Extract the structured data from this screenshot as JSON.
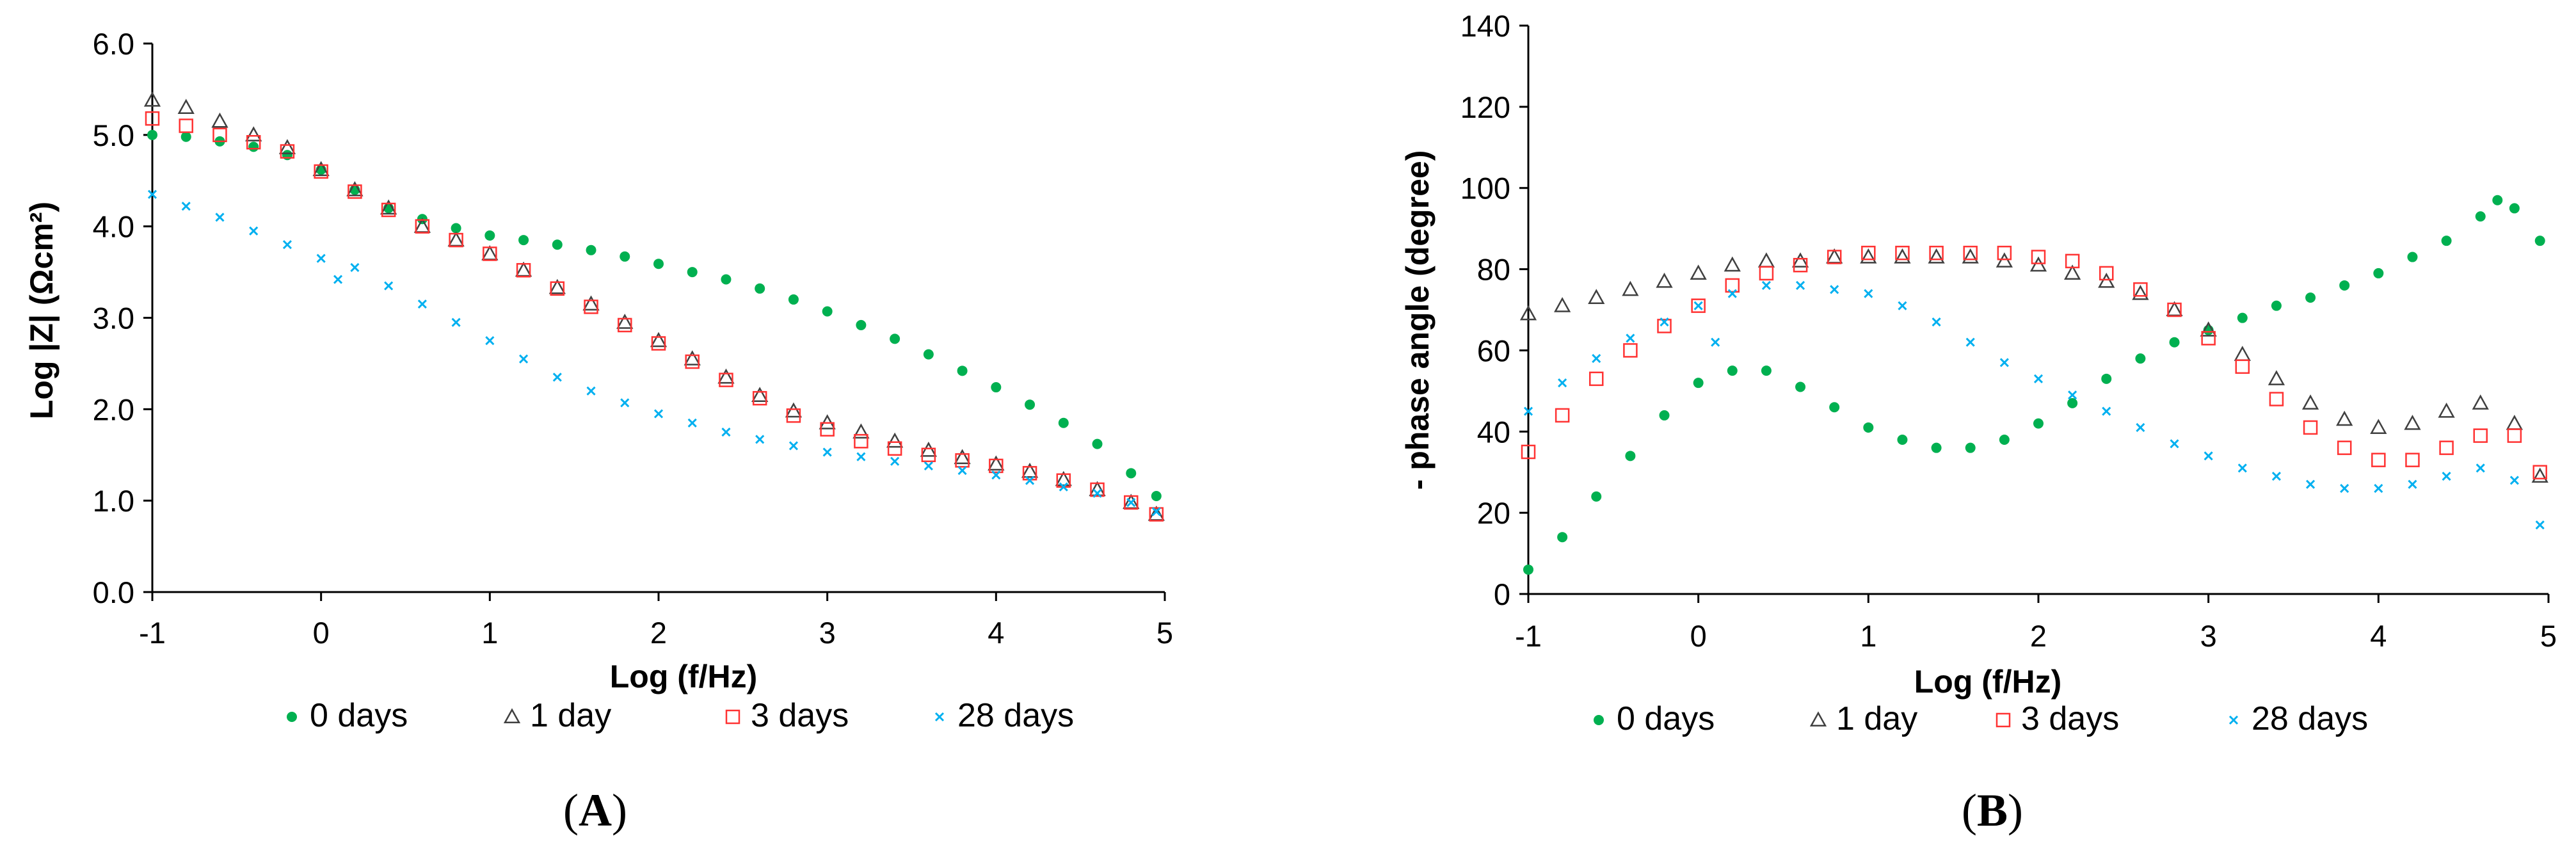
{
  "figure": {
    "panels": [
      {
        "label_open": "(",
        "label": "A",
        "label_close": ")"
      },
      {
        "label_open": "(",
        "label": "B",
        "label_close": ")"
      }
    ]
  },
  "chart_data": [
    {
      "type": "scatter",
      "panel": "A",
      "title": "",
      "xlabel": "Log (f/Hz)",
      "ylabel": "Log |Z| (Ωcm²)",
      "xlim": [
        -1,
        5
      ],
      "ylim": [
        0,
        6
      ],
      "x_ticks": [
        -1,
        0,
        1,
        2,
        3,
        4,
        5
      ],
      "x_tick_labels": [
        "-1",
        "0",
        "1",
        "2",
        "3",
        "4",
        "5"
      ],
      "y_ticks": [
        0,
        1,
        2,
        3,
        4,
        5,
        6
      ],
      "y_tick_labels": [
        "0.0",
        "1.0",
        "2.0",
        "3.0",
        "4.0",
        "5.0",
        "6.0"
      ],
      "grid": false,
      "legend_position": "bottom",
      "series": [
        {
          "name": "0 days",
          "marker": "dot",
          "color": "#00b050",
          "x": [
            -1,
            -0.8,
            -0.6,
            -0.4,
            -0.2,
            0,
            0.2,
            0.4,
            0.6,
            0.8,
            1,
            1.2,
            1.4,
            1.6,
            1.8,
            2,
            2.2,
            2.4,
            2.6,
            2.8,
            3,
            3.2,
            3.4,
            3.6,
            3.8,
            4,
            4.2,
            4.4,
            4.6,
            4.8,
            4.95
          ],
          "y": [
            5.0,
            4.98,
            4.93,
            4.87,
            4.78,
            4.62,
            4.4,
            4.2,
            4.08,
            3.98,
            3.9,
            3.85,
            3.8,
            3.74,
            3.67,
            3.59,
            3.5,
            3.42,
            3.32,
            3.2,
            3.07,
            2.92,
            2.77,
            2.6,
            2.42,
            2.24,
            2.05,
            1.85,
            1.62,
            1.3,
            1.05
          ]
        },
        {
          "name": "1 day",
          "marker": "triangle",
          "color": "#404040",
          "x": [
            -1,
            -0.8,
            -0.6,
            -0.4,
            -0.2,
            0,
            0.2,
            0.4,
            0.6,
            0.8,
            1,
            1.2,
            1.4,
            1.6,
            1.8,
            2,
            2.2,
            2.4,
            2.6,
            2.8,
            3,
            3.2,
            3.4,
            3.6,
            3.8,
            4,
            4.2,
            4.4,
            4.6,
            4.8,
            4.95
          ],
          "y": [
            5.38,
            5.3,
            5.15,
            5.0,
            4.86,
            4.62,
            4.4,
            4.2,
            4.0,
            3.85,
            3.7,
            3.52,
            3.33,
            3.15,
            2.95,
            2.75,
            2.55,
            2.35,
            2.15,
            1.98,
            1.85,
            1.75,
            1.65,
            1.55,
            1.47,
            1.4,
            1.32,
            1.23,
            1.12,
            0.98,
            0.85
          ]
        },
        {
          "name": "3 days",
          "marker": "square",
          "color": "#ff3333",
          "x": [
            -1,
            -0.8,
            -0.6,
            -0.4,
            -0.2,
            0,
            0.2,
            0.4,
            0.6,
            0.8,
            1,
            1.2,
            1.4,
            1.6,
            1.8,
            2,
            2.2,
            2.4,
            2.6,
            2.8,
            3,
            3.2,
            3.4,
            3.6,
            3.8,
            4,
            4.2,
            4.4,
            4.6,
            4.8,
            4.95
          ],
          "y": [
            5.18,
            5.1,
            5.0,
            4.92,
            4.82,
            4.6,
            4.38,
            4.18,
            4.0,
            3.85,
            3.7,
            3.52,
            3.32,
            3.12,
            2.92,
            2.72,
            2.52,
            2.32,
            2.12,
            1.93,
            1.78,
            1.65,
            1.57,
            1.5,
            1.44,
            1.38,
            1.3,
            1.22,
            1.12,
            0.98,
            0.85
          ]
        },
        {
          "name": "28 days",
          "marker": "x",
          "color": "#00b0f0",
          "x": [
            -1,
            -0.8,
            -0.6,
            -0.4,
            -0.2,
            0,
            0.1,
            0.2,
            0.4,
            0.6,
            0.8,
            1,
            1.2,
            1.4,
            1.6,
            1.8,
            2,
            2.2,
            2.4,
            2.6,
            2.8,
            3,
            3.2,
            3.4,
            3.6,
            3.8,
            4,
            4.2,
            4.4,
            4.6,
            4.8,
            4.95
          ],
          "y": [
            4.35,
            4.22,
            4.1,
            3.95,
            3.8,
            3.65,
            3.42,
            3.55,
            3.35,
            3.15,
            2.95,
            2.75,
            2.55,
            2.35,
            2.2,
            2.07,
            1.95,
            1.85,
            1.75,
            1.67,
            1.6,
            1.53,
            1.48,
            1.43,
            1.38,
            1.33,
            1.28,
            1.22,
            1.15,
            1.08,
            0.98,
            0.88
          ]
        }
      ]
    },
    {
      "type": "scatter",
      "panel": "B",
      "title": "",
      "xlabel": "Log (f/Hz)",
      "ylabel": "- phase angle (degree)",
      "xlim": [
        -1,
        5
      ],
      "ylim": [
        0,
        140
      ],
      "x_ticks": [
        -1,
        0,
        1,
        2,
        3,
        4,
        5
      ],
      "x_tick_labels": [
        "-1",
        "0",
        "1",
        "2",
        "3",
        "4",
        "5"
      ],
      "y_ticks": [
        0,
        20,
        40,
        60,
        80,
        100,
        120,
        140
      ],
      "y_tick_labels": [
        "0",
        "20",
        "40",
        "60",
        "80",
        "100",
        "120",
        "140"
      ],
      "grid": false,
      "legend_position": "bottom",
      "series": [
        {
          "name": "0 days",
          "marker": "dot",
          "color": "#00b050",
          "x": [
            -1,
            -0.8,
            -0.6,
            -0.4,
            -0.2,
            0,
            0.2,
            0.4,
            0.6,
            0.8,
            1,
            1.2,
            1.4,
            1.6,
            1.8,
            2,
            2.2,
            2.4,
            2.6,
            2.8,
            3,
            3.2,
            3.4,
            3.6,
            3.8,
            4,
            4.2,
            4.4,
            4.6,
            4.7,
            4.8,
            4.95
          ],
          "y": [
            6,
            14,
            24,
            34,
            44,
            52,
            55,
            55,
            51,
            46,
            41,
            38,
            36,
            36,
            38,
            42,
            47,
            53,
            58,
            62,
            65,
            68,
            71,
            73,
            76,
            79,
            83,
            87,
            93,
            97,
            95,
            87
          ]
        },
        {
          "name": "1 day",
          "marker": "triangle",
          "color": "#404040",
          "x": [
            -1,
            -0.8,
            -0.6,
            -0.4,
            -0.2,
            0,
            0.2,
            0.4,
            0.6,
            0.8,
            1,
            1.2,
            1.4,
            1.6,
            1.8,
            2,
            2.2,
            2.4,
            2.6,
            2.8,
            3,
            3.2,
            3.4,
            3.6,
            3.8,
            4,
            4.2,
            4.4,
            4.6,
            4.8,
            4.95
          ],
          "y": [
            69,
            71,
            73,
            75,
            77,
            79,
            81,
            82,
            82,
            83,
            83,
            83,
            83,
            83,
            82,
            81,
            79,
            77,
            74,
            70,
            65,
            59,
            53,
            47,
            43,
            41,
            42,
            45,
            47,
            42,
            29
          ]
        },
        {
          "name": "3 days",
          "marker": "square",
          "color": "#ff3333",
          "x": [
            -1,
            -0.8,
            -0.6,
            -0.4,
            -0.2,
            0,
            0.2,
            0.4,
            0.6,
            0.8,
            1,
            1.2,
            1.4,
            1.6,
            1.8,
            2,
            2.2,
            2.4,
            2.6,
            2.8,
            3,
            3.2,
            3.4,
            3.6,
            3.8,
            4,
            4.2,
            4.4,
            4.6,
            4.8,
            4.95
          ],
          "y": [
            35,
            44,
            53,
            60,
            66,
            71,
            76,
            79,
            81,
            83,
            84,
            84,
            84,
            84,
            84,
            83,
            82,
            79,
            75,
            70,
            63,
            56,
            48,
            41,
            36,
            33,
            33,
            36,
            39,
            39,
            30
          ]
        },
        {
          "name": "28 days",
          "marker": "x",
          "color": "#00b0f0",
          "x": [
            -1,
            -0.8,
            -0.6,
            -0.4,
            -0.2,
            0,
            0.1,
            0.2,
            0.4,
            0.6,
            0.8,
            1,
            1.2,
            1.4,
            1.6,
            1.8,
            2,
            2.2,
            2.4,
            2.6,
            2.8,
            3,
            3.2,
            3.4,
            3.6,
            3.8,
            4,
            4.2,
            4.4,
            4.6,
            4.8,
            4.95
          ],
          "y": [
            45,
            52,
            58,
            63,
            67,
            71,
            62,
            74,
            76,
            76,
            75,
            74,
            71,
            67,
            62,
            57,
            53,
            49,
            45,
            41,
            37,
            34,
            31,
            29,
            27,
            26,
            26,
            27,
            29,
            31,
            28,
            17
          ]
        }
      ]
    }
  ]
}
